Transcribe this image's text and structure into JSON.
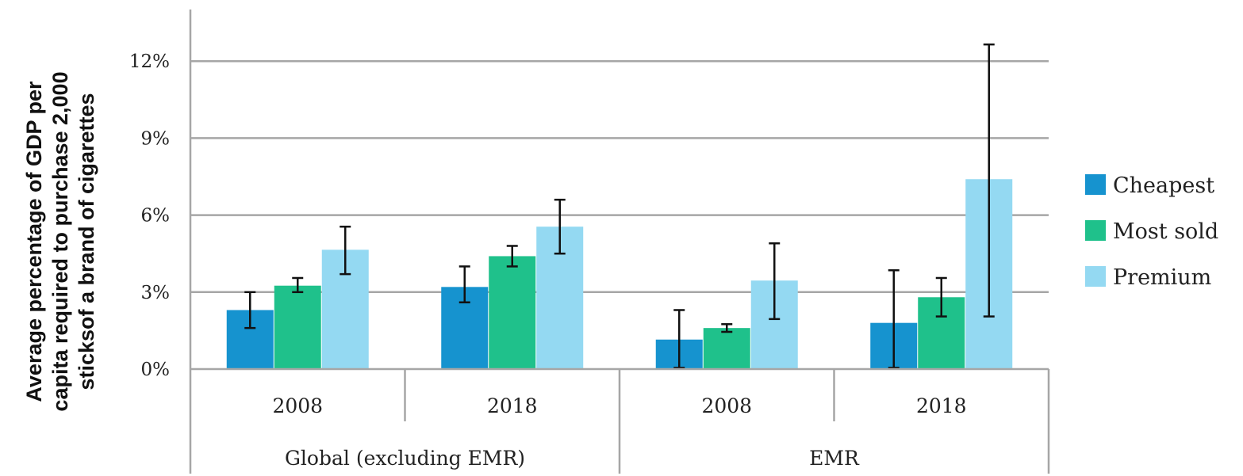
{
  "chart_data": {
    "type": "bar",
    "ylabel_lines": [
      "Average percentage of GDP per",
      "capita required to purchase 2,000",
      "sticksof a brand of cigarettes"
    ],
    "yticks": [
      "0%",
      "3%",
      "6%",
      "9%",
      "12%"
    ],
    "ytick_values": [
      0,
      3,
      6,
      9,
      12
    ],
    "ylim": [
      0,
      13.5
    ],
    "grid": true,
    "legend_position": "right",
    "groups": [
      {
        "label": "Global (excluding EMR)",
        "categories": [
          "2008",
          "2018"
        ]
      },
      {
        "label": "EMR",
        "categories": [
          "2008",
          "2018"
        ]
      }
    ],
    "categories": [
      "2008",
      "2018",
      "2008",
      "2018"
    ],
    "series": [
      {
        "name": "Cheapest",
        "color": "#1693cf",
        "values": [
          2.3,
          3.2,
          1.15,
          1.8
        ],
        "error_low": [
          1.6,
          2.6,
          0.05,
          0.05
        ],
        "error_high": [
          3.0,
          4.0,
          2.3,
          3.85
        ]
      },
      {
        "name": "Most sold",
        "color": "#1fc18b",
        "values": [
          3.25,
          4.4,
          1.6,
          2.8
        ],
        "error_low": [
          3.0,
          4.0,
          1.45,
          2.05
        ],
        "error_high": [
          3.55,
          4.8,
          1.75,
          3.55
        ]
      },
      {
        "name": "Premium",
        "color": "#94d9f2",
        "values": [
          4.65,
          5.55,
          3.45,
          7.4
        ],
        "error_low": [
          3.7,
          4.5,
          1.95,
          2.05
        ],
        "error_high": [
          5.55,
          6.6,
          4.9,
          12.65
        ]
      }
    ]
  }
}
